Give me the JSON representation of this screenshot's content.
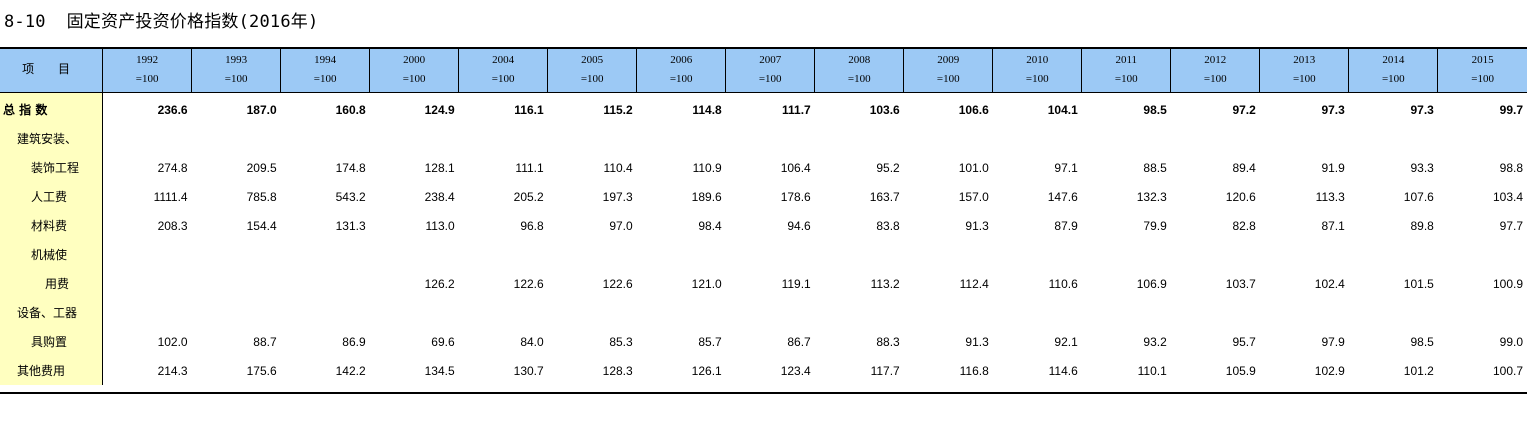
{
  "title": "8-10  固定资产投资价格指数(2016年)",
  "header": {
    "item_label": "项 目",
    "base_suffix": "=100",
    "years": [
      "1992",
      "1993",
      "1994",
      "2000",
      "2004",
      "2005",
      "2006",
      "2007",
      "2008",
      "2009",
      "2010",
      "2011",
      "2012",
      "2013",
      "2014",
      "2015"
    ]
  },
  "rows": [
    {
      "label": "总 指 数",
      "indent": 0,
      "bold": true,
      "values": [
        "236.6",
        "187.0",
        "160.8",
        "124.9",
        "116.1",
        "115.2",
        "114.8",
        "111.7",
        "103.6",
        "106.6",
        "104.1",
        "98.5",
        "97.2",
        "97.3",
        "97.3",
        "99.7"
      ]
    },
    {
      "label": "建筑安装、",
      "indent": 1,
      "bold": false,
      "values": [
        "",
        "",
        "",
        "",
        "",
        "",
        "",
        "",
        "",
        "",
        "",
        "",
        "",
        "",
        "",
        ""
      ]
    },
    {
      "label": "装饰工程",
      "indent": 2,
      "bold": false,
      "values": [
        "274.8",
        "209.5",
        "174.8",
        "128.1",
        "111.1",
        "110.4",
        "110.9",
        "106.4",
        "95.2",
        "101.0",
        "97.1",
        "88.5",
        "89.4",
        "91.9",
        "93.3",
        "98.8"
      ]
    },
    {
      "label": "人工费",
      "indent": 2,
      "bold": false,
      "values": [
        "1111.4",
        "785.8",
        "543.2",
        "238.4",
        "205.2",
        "197.3",
        "189.6",
        "178.6",
        "163.7",
        "157.0",
        "147.6",
        "132.3",
        "120.6",
        "113.3",
        "107.6",
        "103.4"
      ]
    },
    {
      "label": "材料费",
      "indent": 2,
      "bold": false,
      "values": [
        "208.3",
        "154.4",
        "131.3",
        "113.0",
        "96.8",
        "97.0",
        "98.4",
        "94.6",
        "83.8",
        "91.3",
        "87.9",
        "79.9",
        "82.8",
        "87.1",
        "89.8",
        "97.7"
      ]
    },
    {
      "label": "机械使",
      "indent": 2,
      "bold": false,
      "values": [
        "",
        "",
        "",
        "",
        "",
        "",
        "",
        "",
        "",
        "",
        "",
        "",
        "",
        "",
        "",
        ""
      ]
    },
    {
      "label": "用费",
      "indent": 3,
      "bold": false,
      "values": [
        "",
        "",
        "",
        "126.2",
        "122.6",
        "122.6",
        "121.0",
        "119.1",
        "113.2",
        "112.4",
        "110.6",
        "106.9",
        "103.7",
        "102.4",
        "101.5",
        "100.9"
      ]
    },
    {
      "label": "设备、工器",
      "indent": 1,
      "bold": false,
      "values": [
        "",
        "",
        "",
        "",
        "",
        "",
        "",
        "",
        "",
        "",
        "",
        "",
        "",
        "",
        "",
        ""
      ]
    },
    {
      "label": "具购置",
      "indent": 2,
      "bold": false,
      "values": [
        "102.0",
        "88.7",
        "86.9",
        "69.6",
        "84.0",
        "85.3",
        "85.7",
        "86.7",
        "88.3",
        "91.3",
        "92.1",
        "93.2",
        "95.7",
        "97.9",
        "98.5",
        "99.0"
      ]
    },
    {
      "label": "其他费用",
      "indent": 1,
      "bold": false,
      "values": [
        "214.3",
        "175.6",
        "142.2",
        "134.5",
        "130.7",
        "128.3",
        "126.1",
        "123.4",
        "117.7",
        "116.8",
        "114.6",
        "110.1",
        "105.9",
        "102.9",
        "101.2",
        "100.7"
      ]
    }
  ]
}
